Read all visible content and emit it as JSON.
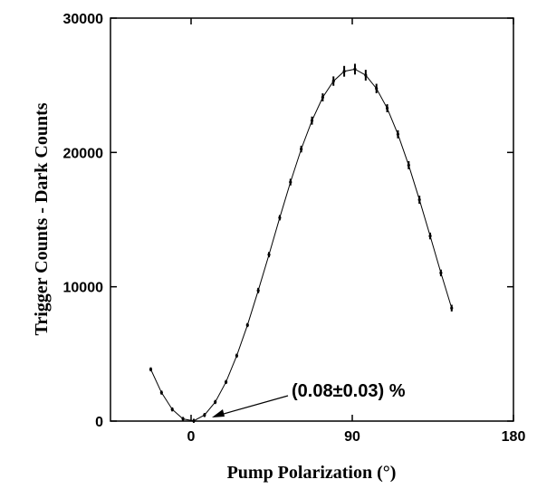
{
  "chart_data": {
    "type": "scatter",
    "x_label": "Pump Polarization (°)",
    "y_label": "Trigger Counts - Dark Counts",
    "annotation": "(0.08±0.03) %",
    "xlim": [
      -45,
      180
    ],
    "xticks": [
      0,
      90,
      180
    ],
    "ylim": [
      0,
      30000
    ],
    "yticks": [
      0,
      10000,
      20000,
      30000
    ],
    "x": [
      -22.5,
      -16.5,
      -10.5,
      -4.5,
      1.5,
      7.5,
      13.5,
      19.5,
      25.5,
      31.5,
      37.5,
      43.5,
      49.5,
      55.5,
      61.5,
      67.5,
      73.5,
      79.5,
      85.5,
      91.5,
      97.5,
      103.5,
      109.5,
      115.5,
      121.5,
      127.5,
      133.5,
      139.5,
      145.5
    ],
    "series": [
      {
        "color": "#000000",
        "connect": true,
        "values": [
          3850,
          2120,
          870,
          160,
          20,
          450,
          1420,
          2910,
          4870,
          7150,
          9720,
          12390,
          15140,
          17790,
          20250,
          22370,
          24100,
          25310,
          26040,
          26200,
          25750,
          24760,
          23290,
          21350,
          19050,
          16480,
          13780,
          11030,
          8410
        ],
        "errors": [
          150,
          150,
          150,
          150,
          150,
          150,
          150,
          150,
          150,
          150,
          200,
          200,
          200,
          250,
          250,
          300,
          300,
          350,
          400,
          400,
          400,
          350,
          300,
          300,
          300,
          300,
          250,
          250,
          250
        ]
      }
    ]
  }
}
